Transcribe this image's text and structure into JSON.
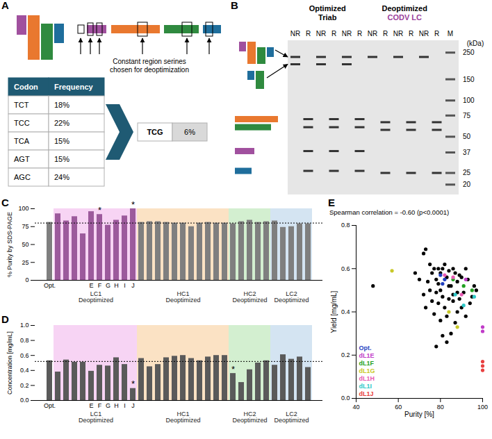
{
  "panel_labels": [
    "A",
    "B",
    "C",
    "D",
    "E"
  ],
  "diagram_a": {
    "caption": "Constant region serines chosen for deoptimization",
    "table": {
      "columns": [
        "Codon",
        "Frequency"
      ],
      "rows": [
        [
          "TCT",
          "18%"
        ],
        [
          "TCC",
          "22%"
        ],
        [
          "TCA",
          "15%"
        ],
        [
          "AGT",
          "15%"
        ],
        [
          "AGC",
          "24%"
        ]
      ]
    },
    "replacement": [
      "TCG",
      "6%"
    ]
  },
  "gel_b": {
    "groups": [
      {
        "lines": [
          {
            "text": "Optimized",
            "color": "#000000"
          },
          {
            "text": "Triab",
            "color": "#000000"
          }
        ],
        "lanes": [
          {
            "label": "NR",
            "bands": [
              230,
              200
            ]
          },
          {
            "label": "R",
            "bands": [
              70,
              60,
              38,
              26
            ]
          },
          {
            "label": "NR",
            "bands": [
              230,
              200
            ]
          },
          {
            "label": "R",
            "bands": [
              70,
              60,
              38,
              26
            ]
          },
          {
            "label": "NR",
            "bands": [
              230,
              200
            ]
          },
          {
            "label": "R",
            "bands": [
              70,
              60,
              38,
              26
            ]
          }
        ]
      },
      {
        "lines": [
          {
            "text": "Deoptimized",
            "color": "#000000"
          },
          {
            "text": "CODV LC",
            "color": "#9b3f9b"
          }
        ],
        "lanes": [
          {
            "label": "NR",
            "bands": [
              230
            ]
          },
          {
            "label": "R",
            "bands": [
              66,
              57,
              25
            ]
          },
          {
            "label": "NR",
            "bands": [
              230
            ]
          },
          {
            "label": "R",
            "bands": [
              66,
              57,
              25
            ]
          },
          {
            "label": "NR",
            "bands": [
              230
            ]
          },
          {
            "label": "R",
            "bands": [
              66,
              57,
              25
            ]
          }
        ]
      }
    ],
    "marker": {
      "label": "M",
      "unit": "(kDa)",
      "bands": [
        250,
        150,
        100,
        75,
        50,
        37,
        25,
        20
      ]
    }
  },
  "chart_data": [
    {
      "type": "bar",
      "y_label": "% Purity by SDS-PAGE",
      "categories": [
        "Opt.",
        null,
        null,
        null,
        null,
        "E",
        "F",
        "G",
        "H",
        "I",
        "J",
        null,
        null,
        null,
        null,
        null,
        null,
        null,
        null,
        null,
        null,
        null,
        null,
        null,
        null,
        null,
        null,
        null,
        null,
        null,
        null,
        null
      ],
      "group_labels": [
        null,
        "LC1 Deoptimized",
        "LC1 Deoptimized",
        "LC1 Deoptimized",
        "LC1 Deoptimized",
        "LC1 Deoptimized",
        "LC1 Deoptimized",
        "LC1 Deoptimized",
        "LC1 Deoptimized",
        "LC1 Deoptimized",
        "LC1 Deoptimized",
        "HC1 Deoptimized",
        "HC1 Deoptimized",
        "HC1 Deoptimized",
        "HC1 Deoptimized",
        "HC1 Deoptimized",
        "HC1 Deoptimized",
        "HC1 Deoptimized",
        "HC1 Deoptimized",
        "HC1 Deoptimized",
        "HC1 Deoptimized",
        "HC1 Deoptimized",
        "HC2 Deoptimized",
        "HC2 Deoptimized",
        "HC2 Deoptimized",
        "HC2 Deoptimized",
        "HC2 Deoptimized",
        "LC2 Deoptimized",
        "LC2 Deoptimized",
        "LC2 Deoptimized",
        "LC2 Deoptimized",
        "LC2 Deoptimized"
      ],
      "group_colors": {
        "LC1 Deoptimized": "#f7d4f4",
        "HC1 Deoptimized": "#fbe2c4",
        "HC2 Deoptimized": "#d3efd0",
        "LC2 Deoptimized": "#d4e4f2"
      },
      "values": [
        81,
        93,
        83,
        89,
        65,
        96,
        92,
        77,
        84,
        90,
        100,
        81,
        82,
        82,
        81,
        80,
        80,
        75,
        80,
        81,
        80,
        80,
        79,
        82,
        84,
        81,
        82,
        83,
        74,
        75,
        79,
        79
      ],
      "colors": [
        "#7f7f7f",
        "#9c5a9c",
        "#9c5a9c",
        "#9c5a9c",
        "#9c5a9c",
        "#9c5a9c",
        "#9c5a9c",
        "#9c5a9c",
        "#9c5a9c",
        "#9c5a9c",
        "#9c5a9c",
        "#7f7f7f",
        "#7f7f7f",
        "#7f7f7f",
        "#7f7f7f",
        "#7f7f7f",
        "#7f7f7f",
        "#7f7f7f",
        "#7f7f7f",
        "#7f7f7f",
        "#7f7f7f",
        "#7f7f7f",
        "#7f7f7f",
        "#7f7f7f",
        "#7f7f7f",
        "#7f7f7f",
        "#7f7f7f",
        "#7f7f7f",
        "#7f7f7f",
        "#7f7f7f",
        "#7f7f7f",
        "#7f7f7f"
      ],
      "reference_line": 80,
      "annotations": [
        {
          "index": 6,
          "text": "*"
        },
        {
          "index": 10,
          "text": "*"
        }
      ],
      "ylim": [
        0,
        100
      ],
      "yticks": [
        0,
        25,
        50,
        75,
        100
      ],
      "grid": false
    },
    {
      "type": "bar",
      "y_label": "Concentration [mg/mL]",
      "categories": [
        "Opt.",
        null,
        null,
        null,
        null,
        "E",
        "F",
        "G",
        "H",
        "I",
        "J",
        null,
        null,
        null,
        null,
        null,
        null,
        null,
        null,
        null,
        null,
        null,
        null,
        null,
        null,
        null,
        null,
        null,
        null,
        null,
        null,
        null
      ],
      "group_labels": [
        null,
        "LC1 Deoptimized",
        "LC1 Deoptimized",
        "LC1 Deoptimized",
        "LC1 Deoptimized",
        "LC1 Deoptimized",
        "LC1 Deoptimized",
        "LC1 Deoptimized",
        "LC1 Deoptimized",
        "LC1 Deoptimized",
        "LC1 Deoptimized",
        "HC1 Deoptimized",
        "HC1 Deoptimized",
        "HC1 Deoptimized",
        "HC1 Deoptimized",
        "HC1 Deoptimized",
        "HC1 Deoptimized",
        "HC1 Deoptimized",
        "HC1 Deoptimized",
        "HC1 Deoptimized",
        "HC1 Deoptimized",
        "HC1 Deoptimized",
        "HC2 Deoptimized",
        "HC2 Deoptimized",
        "HC2 Deoptimized",
        "HC2 Deoptimized",
        "HC2 Deoptimized",
        "LC2 Deoptimized",
        "LC2 Deoptimized",
        "LC2 Deoptimized",
        "LC2 Deoptimized",
        "LC2 Deoptimized"
      ],
      "group_colors": {
        "LC1 Deoptimized": "#f7d4f4",
        "HC1 Deoptimized": "#fbe2c4",
        "HC2 Deoptimized": "#d3efd0",
        "LC2 Deoptimized": "#d4e4f2"
      },
      "values": [
        0.53,
        0.38,
        0.54,
        0.51,
        0.51,
        0.39,
        0.47,
        0.46,
        0.57,
        0.48,
        0.16,
        0.56,
        0.45,
        0.48,
        0.57,
        0.59,
        0.6,
        0.56,
        0.53,
        0.58,
        0.6,
        0.6,
        0.36,
        0.24,
        0.41,
        0.5,
        0.53,
        0.47,
        0.61,
        0.55,
        0.58,
        0.44
      ],
      "color": "#5a5a5a",
      "reference_line": 0.52,
      "annotations": [
        {
          "index": 10,
          "text": "*"
        },
        {
          "index": 22,
          "text": "*"
        }
      ],
      "ylim": [
        0,
        1
      ],
      "yticks": [
        {
          "value": 0,
          "label": "0.0"
        },
        0.2,
        0.4,
        0.6,
        0.8,
        {
          "value": 1,
          "label": "1.0"
        }
      ],
      "grid": false
    },
    {
      "type": "scatter",
      "title": "Spearman correlation = -0.60 (p<0.0001)",
      "x_label": "Purity [%]",
      "y_label": "Yield [mg/mL]",
      "marker": "circle",
      "legend": "bottom-left",
      "series": [
        {
          "name": null,
          "color": "#000000",
          "x": [
            48,
            72,
            73,
            75,
            76,
            77,
            78,
            78,
            79,
            79,
            80,
            80,
            81,
            81,
            82,
            82,
            83,
            83,
            84,
            84,
            85,
            85,
            86,
            86,
            87,
            87,
            88,
            88,
            89,
            89,
            90,
            90,
            91,
            92,
            92,
            93,
            94,
            95,
            96,
            97,
            74,
            76,
            77,
            78,
            80,
            81,
            83,
            75,
            79,
            84,
            86,
            88,
            70,
            72,
            73,
            68
          ],
          "y": [
            0.52,
            0.67,
            0.69,
            0.62,
            0.58,
            0.6,
            0.55,
            0.49,
            0.6,
            0.44,
            0.58,
            0.5,
            0.6,
            0.47,
            0.62,
            0.42,
            0.56,
            0.38,
            0.59,
            0.46,
            0.52,
            0.3,
            0.45,
            0.6,
            0.58,
            0.35,
            0.54,
            0.4,
            0.57,
            0.46,
            0.56,
            0.42,
            0.49,
            0.6,
            0.38,
            0.55,
            0.44,
            0.47,
            0.52,
            0.5,
            0.54,
            0.45,
            0.39,
            0.24,
            0.36,
            0.29,
            0.26,
            0.5,
            0.53,
            0.52,
            0.48,
            0.49,
            0.55,
            0.48,
            0.42,
            0.58
          ]
        },
        {
          "name": "Opt.",
          "color": "#1f3fbf",
          "x": [
            80,
            81,
            82
          ],
          "y": [
            0.57,
            0.53,
            0.55
          ]
        },
        {
          "name": "dL1E",
          "color": "#c03cc8",
          "x": [
            92,
            100,
            100
          ],
          "y": [
            0.55,
            0.33,
            0.31
          ]
        },
        {
          "name": "dL1F",
          "color": "#22a022",
          "x": [
            86,
            91,
            95
          ],
          "y": [
            0.55,
            0.52,
            0.5
          ]
        },
        {
          "name": "dL1G",
          "color": "#c8c828",
          "x": [
            57,
            84,
            88
          ],
          "y": [
            0.59,
            0.4,
            0.33
          ]
        },
        {
          "name": "dL1H",
          "color": "#e85ab4",
          "x": [
            82,
            86,
            90
          ],
          "y": [
            0.57,
            0.56,
            0.48
          ]
        },
        {
          "name": "dL1I",
          "color": "#2ec8c8",
          "x": [
            87,
            91,
            96
          ],
          "y": [
            0.48,
            0.43,
            0.47
          ]
        },
        {
          "name": "dL1J",
          "color": "#e84040",
          "x": [
            100,
            100,
            100
          ],
          "y": [
            0.17,
            0.15,
            0.13
          ]
        }
      ],
      "xlim": [
        40,
        100
      ],
      "xticks": [
        40,
        60,
        80,
        100
      ],
      "ylim": [
        0,
        0.8
      ],
      "yticks": [
        {
          "value": 0,
          "label": "0.0"
        },
        0.2,
        0.4,
        0.6,
        0.8
      ],
      "grid": false
    }
  ]
}
